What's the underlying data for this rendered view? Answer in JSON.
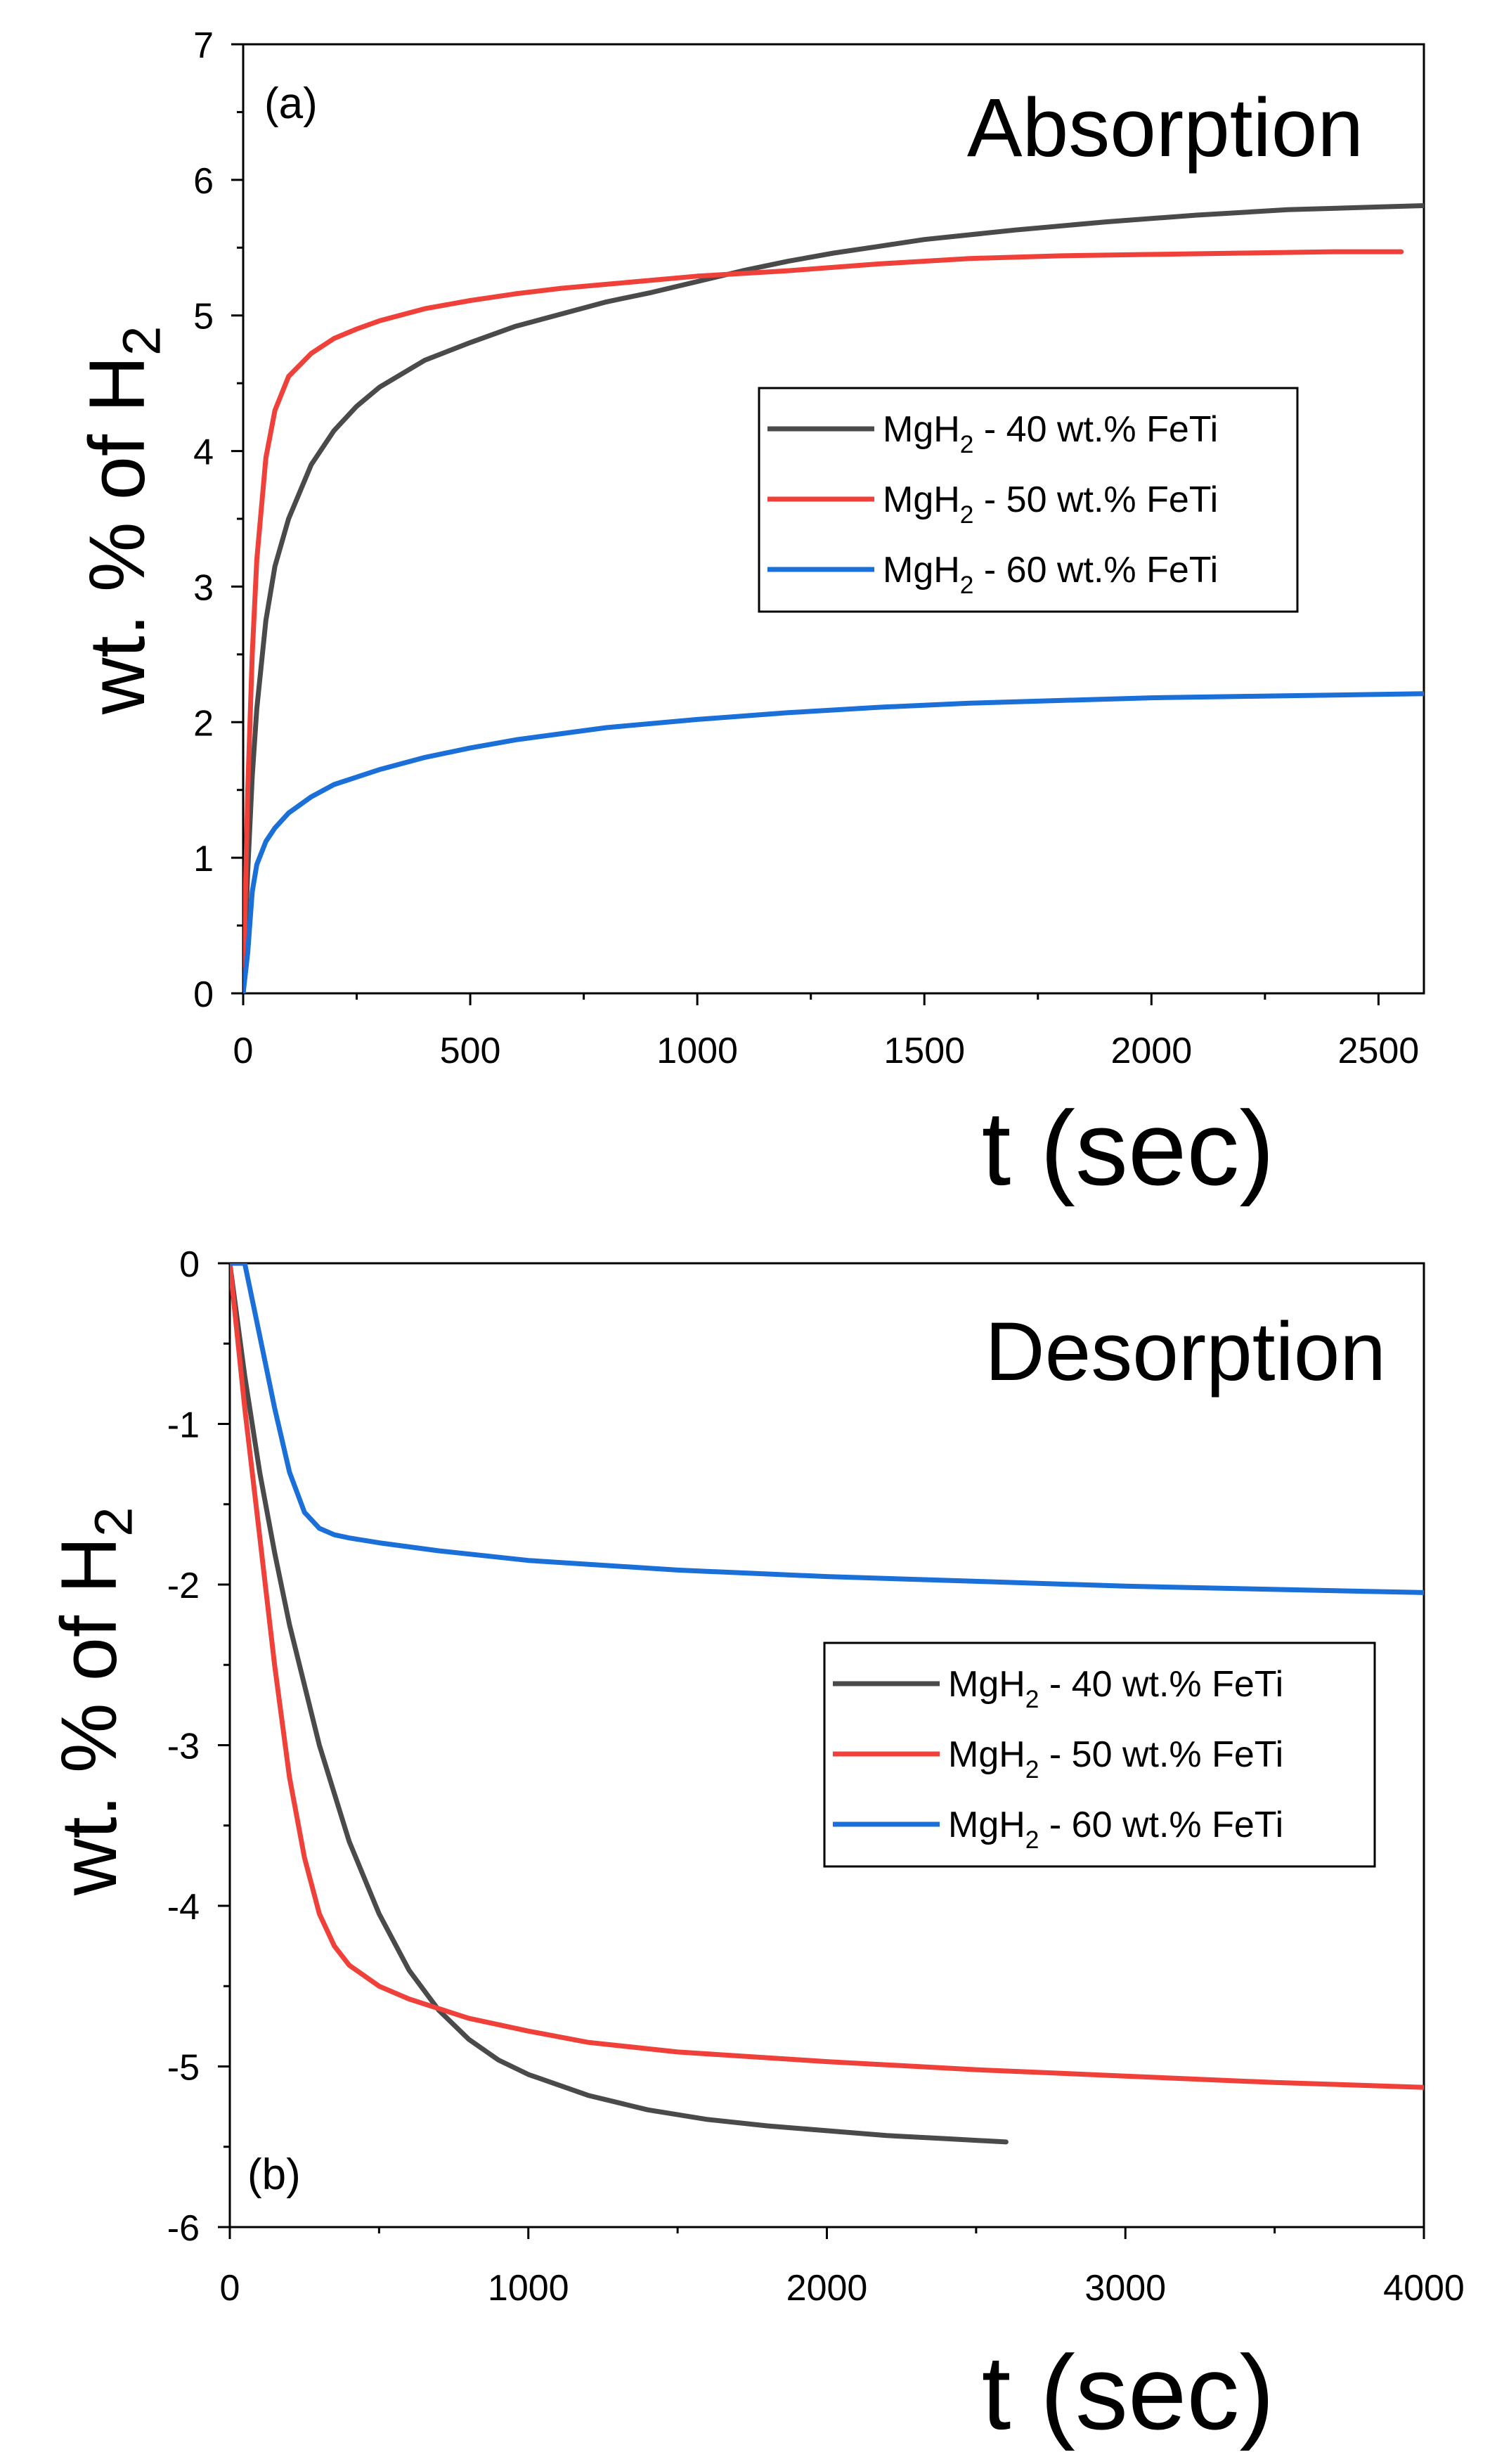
{
  "chart_data": [
    {
      "type": "line",
      "panel_label": "(a)",
      "title": "Absorption",
      "xlabel": "t (sec)",
      "ylabel": {
        "main": "wt. % of H",
        "sub": "2"
      },
      "xlim": [
        0,
        2600
      ],
      "ylim": [
        0,
        7
      ],
      "xticks": [
        0,
        500,
        1000,
        1500,
        2000,
        2500
      ],
      "yticks": [
        0,
        1,
        2,
        3,
        4,
        5,
        6,
        7
      ],
      "legend_position": "middle-right",
      "series": [
        {
          "name": "MgH2 - 40 wt.% FeTi",
          "label_parts": {
            "pre": "MgH",
            "sub": "2",
            "post": " - 40 wt.% FeTi"
          },
          "color": "#4a4a4a",
          "x": [
            0,
            10,
            20,
            30,
            50,
            70,
            100,
            150,
            200,
            250,
            300,
            400,
            500,
            600,
            700,
            800,
            900,
            1000,
            1100,
            1200,
            1300,
            1400,
            1500,
            1700,
            1900,
            2100,
            2300,
            2500,
            2600
          ],
          "y": [
            0,
            0.9,
            1.6,
            2.1,
            2.75,
            3.15,
            3.5,
            3.9,
            4.15,
            4.33,
            4.47,
            4.67,
            4.8,
            4.92,
            5.01,
            5.1,
            5.17,
            5.25,
            5.33,
            5.4,
            5.46,
            5.51,
            5.56,
            5.63,
            5.69,
            5.74,
            5.78,
            5.8,
            5.81
          ]
        },
        {
          "name": "MgH2 - 50 wt.% FeTi",
          "label_parts": {
            "pre": "MgH",
            "sub": "2",
            "post": " - 50 wt.% FeTi"
          },
          "color": "#f0403a",
          "x": [
            0,
            10,
            20,
            30,
            50,
            70,
            100,
            150,
            200,
            250,
            300,
            400,
            500,
            600,
            700,
            800,
            900,
            1000,
            1200,
            1400,
            1600,
            1800,
            2000,
            2200,
            2400,
            2550
          ],
          "y": [
            0,
            1.5,
            2.5,
            3.2,
            3.95,
            4.3,
            4.55,
            4.72,
            4.83,
            4.9,
            4.96,
            5.05,
            5.11,
            5.16,
            5.2,
            5.23,
            5.26,
            5.29,
            5.33,
            5.38,
            5.42,
            5.44,
            5.45,
            5.46,
            5.47,
            5.47
          ]
        },
        {
          "name": "MgH2 - 60 wt.% FeTi",
          "label_parts": {
            "pre": "MgH",
            "sub": "2",
            "post": " - 60 wt.% FeTi"
          },
          "color": "#1a6fd8",
          "x": [
            0,
            10,
            20,
            30,
            50,
            70,
            100,
            150,
            200,
            300,
            400,
            500,
            600,
            800,
            1000,
            1200,
            1400,
            1600,
            1800,
            2000,
            2200,
            2400,
            2600
          ],
          "y": [
            0,
            0.3,
            0.75,
            0.95,
            1.12,
            1.22,
            1.33,
            1.45,
            1.54,
            1.65,
            1.74,
            1.81,
            1.87,
            1.96,
            2.02,
            2.07,
            2.11,
            2.14,
            2.16,
            2.18,
            2.19,
            2.2,
            2.21
          ]
        }
      ]
    },
    {
      "type": "line",
      "panel_label": "(b)",
      "title": "Desorption",
      "xlabel": "t (sec)",
      "ylabel": {
        "main": "wt. % of H",
        "sub": "2"
      },
      "xlim": [
        0,
        4000
      ],
      "ylim": [
        -6,
        0
      ],
      "xticks": [
        0,
        1000,
        2000,
        3000,
        4000
      ],
      "yticks": [
        0,
        -1,
        -2,
        -3,
        -4,
        -5,
        -6
      ],
      "legend_position": "middle-right",
      "series": [
        {
          "name": "MgH2 - 40 wt.% FeTi",
          "label_parts": {
            "pre": "MgH",
            "sub": "2",
            "post": " - 40 wt.% FeTi"
          },
          "color": "#4a4a4a",
          "x": [
            0,
            50,
            100,
            150,
            200,
            300,
            400,
            500,
            600,
            700,
            800,
            900,
            1000,
            1200,
            1400,
            1600,
            1800,
            2000,
            2200,
            2400,
            2600
          ],
          "y": [
            0,
            -0.7,
            -1.3,
            -1.8,
            -2.25,
            -3.0,
            -3.6,
            -4.05,
            -4.4,
            -4.65,
            -4.83,
            -4.96,
            -5.05,
            -5.18,
            -5.27,
            -5.33,
            -5.37,
            -5.4,
            -5.43,
            -5.45,
            -5.47
          ]
        },
        {
          "name": "MgH2 - 50 wt.% FeTi",
          "label_parts": {
            "pre": "MgH",
            "sub": "2",
            "post": " - 50 wt.% FeTi"
          },
          "color": "#f0403a",
          "x": [
            0,
            50,
            100,
            150,
            200,
            250,
            300,
            350,
            400,
            500,
            600,
            700,
            800,
            1000,
            1200,
            1500,
            2000,
            2500,
            3000,
            3500,
            4000
          ],
          "y": [
            0,
            -0.9,
            -1.7,
            -2.5,
            -3.2,
            -3.7,
            -4.05,
            -4.25,
            -4.37,
            -4.5,
            -4.58,
            -4.64,
            -4.7,
            -4.78,
            -4.85,
            -4.91,
            -4.97,
            -5.02,
            -5.06,
            -5.1,
            -5.13
          ]
        },
        {
          "name": "MgH2 - 60 wt.% FeTi",
          "label_parts": {
            "pre": "MgH",
            "sub": "2",
            "post": " - 60 wt.% FeTi"
          },
          "color": "#1a6fd8",
          "x": [
            0,
            50,
            100,
            150,
            200,
            250,
            300,
            350,
            400,
            500,
            700,
            1000,
            1500,
            2000,
            2500,
            3000,
            3500,
            4000
          ],
          "y": [
            0,
            0,
            -0.45,
            -0.9,
            -1.3,
            -1.55,
            -1.65,
            -1.69,
            -1.71,
            -1.74,
            -1.79,
            -1.85,
            -1.91,
            -1.95,
            -1.98,
            -2.01,
            -2.03,
            -2.05
          ]
        }
      ]
    }
  ]
}
